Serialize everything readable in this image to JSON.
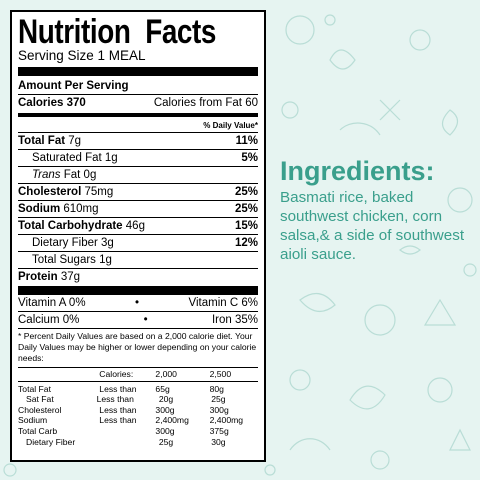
{
  "colors": {
    "accent": "#3a9f8c",
    "background": "#e6f4f1",
    "pattern": "#b9ddd6"
  },
  "label": {
    "title_word1": "Nutrition",
    "title_word2": "Facts",
    "serving": "Serving Size 1 MEAL",
    "amount_per_serving": "Amount Per Serving",
    "calories_label": "Calories 370",
    "calories_fat": "Calories from Fat 60",
    "dv_header": "% Daily Value*",
    "nutrients": {
      "total_fat": {
        "label": "Total Fat",
        "amount": "7g",
        "dv": "11%"
      },
      "saturated_fat": {
        "label": "Saturated Fat 1g",
        "dv": "5%"
      },
      "trans_fat": {
        "label_italic": "Trans",
        "label_rest": " Fat 0g"
      },
      "cholesterol": {
        "label": "Cholesterol",
        "amount": "75mg",
        "dv": "25%"
      },
      "sodium": {
        "label": "Sodium",
        "amount": "610mg",
        "dv": "25%"
      },
      "total_carb": {
        "label": "Total Carbohydrate",
        "amount": "46g",
        "dv": "15%"
      },
      "fiber": {
        "label": "Dietary Fiber 3g",
        "dv": "12%"
      },
      "sugars": {
        "label": "Total Sugars 1g"
      },
      "protein": {
        "label": "Protein",
        "amount": "37g"
      }
    },
    "vitamins": [
      {
        "left": "Vitamin A 0%",
        "right": "Vitamin C 6%"
      },
      {
        "left": "Calcium 0%",
        "right": "Iron 35%"
      }
    ],
    "bullet": "•",
    "footnote": "* Percent Daily Values are based on a 2,000 calorie diet. Your Daily Values may be higher or lower depending on your calorie needs:",
    "dv_table": {
      "header": [
        "",
        "Calories:",
        "2,000",
        "2,500"
      ],
      "rows": [
        [
          "Total Fat",
          "Less than",
          "65g",
          "80g"
        ],
        [
          "Sat Fat",
          "Less than",
          "20g",
          "25g"
        ],
        [
          "Cholesterol",
          "Less than",
          "300g",
          "300g"
        ],
        [
          "Sodium",
          "Less than",
          "2,400mg",
          "2,400mg"
        ],
        [
          "Total Carb",
          "",
          "300g",
          "375g"
        ],
        [
          "Dietary Fiber",
          "",
          "25g",
          "30g"
        ]
      ]
    }
  },
  "ingredients": {
    "title": "Ingredients:",
    "text": "Basmati rice, baked southwest chicken, corn salsa,& a side of southwest aioli sauce."
  }
}
